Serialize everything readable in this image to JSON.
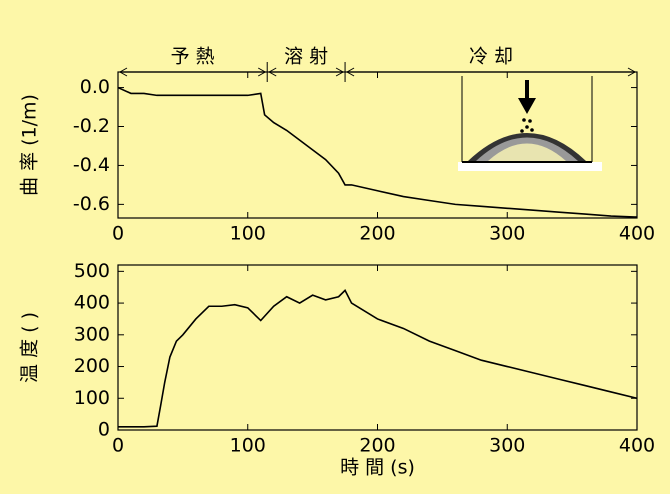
{
  "chart_data": [
    {
      "type": "line",
      "ylabel": "曲 率 (1/m)",
      "phases": [
        {
          "label": "予 熱",
          "start": 0,
          "end": 115
        },
        {
          "label": "溶 射",
          "start": 115,
          "end": 175
        },
        {
          "label": "冷 却",
          "start": 175,
          "end": 400
        }
      ],
      "x": [
        0,
        10,
        20,
        30,
        40,
        50,
        60,
        70,
        80,
        90,
        100,
        110,
        113,
        120,
        130,
        140,
        150,
        160,
        170,
        175,
        180,
        200,
        220,
        240,
        260,
        280,
        300,
        320,
        340,
        360,
        380,
        400
      ],
      "values": [
        0,
        -0.03,
        -0.03,
        -0.04,
        -0.04,
        -0.04,
        -0.04,
        -0.04,
        -0.04,
        -0.04,
        -0.04,
        -0.03,
        -0.14,
        -0.18,
        -0.22,
        -0.27,
        -0.32,
        -0.37,
        -0.44,
        -0.5,
        -0.5,
        -0.53,
        -0.56,
        -0.58,
        -0.6,
        -0.61,
        -0.62,
        -0.63,
        -0.64,
        -0.65,
        -0.66,
        -0.665
      ],
      "color": "#000000",
      "xlim": [
        0,
        400
      ],
      "xticks": [
        0,
        100,
        200,
        300,
        400
      ],
      "ylim": [
        -0.67,
        0.08
      ],
      "yticks": [
        {
          "value": 0,
          "label": "0.0"
        },
        -0.2,
        -0.4,
        -0.6
      ]
    },
    {
      "type": "line",
      "ylabel": "温 度 (    )",
      "xlabel": "時 間    (s)",
      "x": [
        0,
        10,
        20,
        30,
        33,
        36,
        40,
        45,
        50,
        60,
        70,
        80,
        90,
        100,
        110,
        120,
        130,
        140,
        150,
        160,
        170,
        175,
        180,
        200,
        220,
        240,
        260,
        280,
        300,
        320,
        340,
        360,
        380,
        400
      ],
      "values": [
        10,
        10,
        10,
        12,
        80,
        150,
        230,
        280,
        300,
        350,
        390,
        390,
        395,
        385,
        345,
        390,
        420,
        400,
        425,
        410,
        420,
        440,
        400,
        350,
        320,
        280,
        250,
        220,
        200,
        180,
        160,
        140,
        120,
        100
      ],
      "color": "#000000",
      "xlim": [
        0,
        400
      ],
      "xticks": [
        0,
        100,
        200,
        300,
        400
      ],
      "ylim": [
        0,
        520
      ],
      "yticks": [
        0,
        100,
        200,
        300,
        400,
        500
      ]
    }
  ]
}
